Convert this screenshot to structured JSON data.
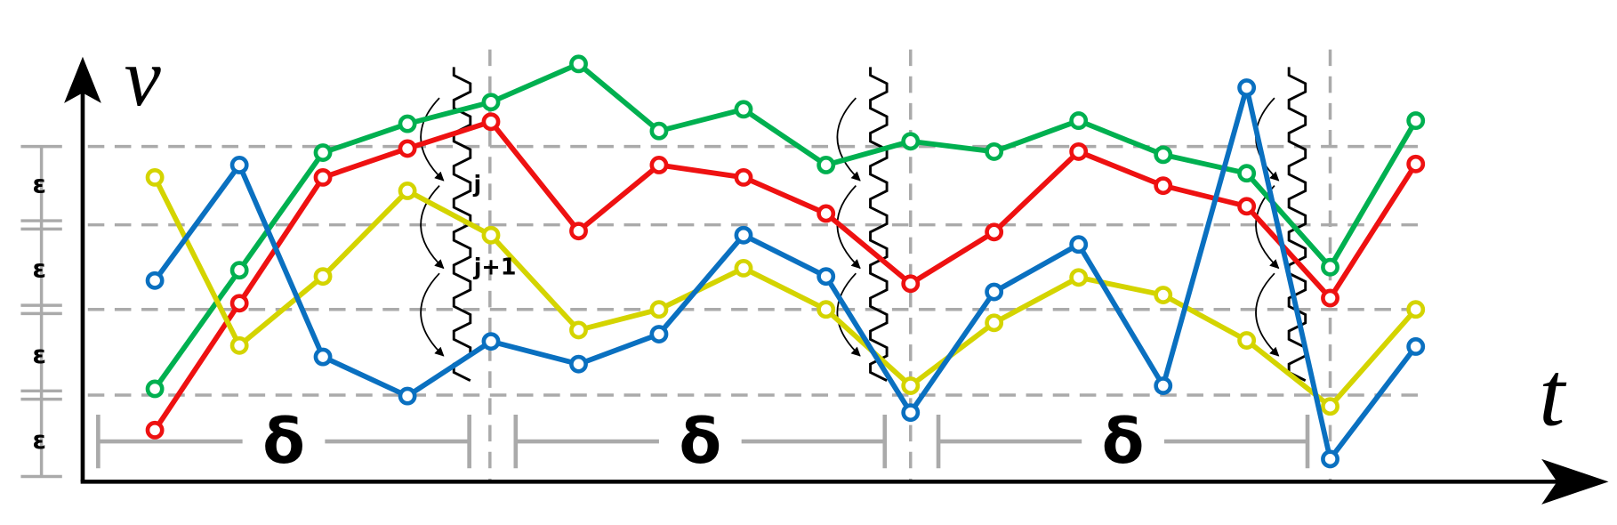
{
  "axes": {
    "y_label": "v",
    "x_label": "t"
  },
  "epsilon_labels": [
    "ε",
    "ε",
    "ε",
    "ε"
  ],
  "delta_labels": [
    "δ",
    "δ",
    "δ"
  ],
  "window_labels": [
    "j",
    "j+1"
  ]
}
